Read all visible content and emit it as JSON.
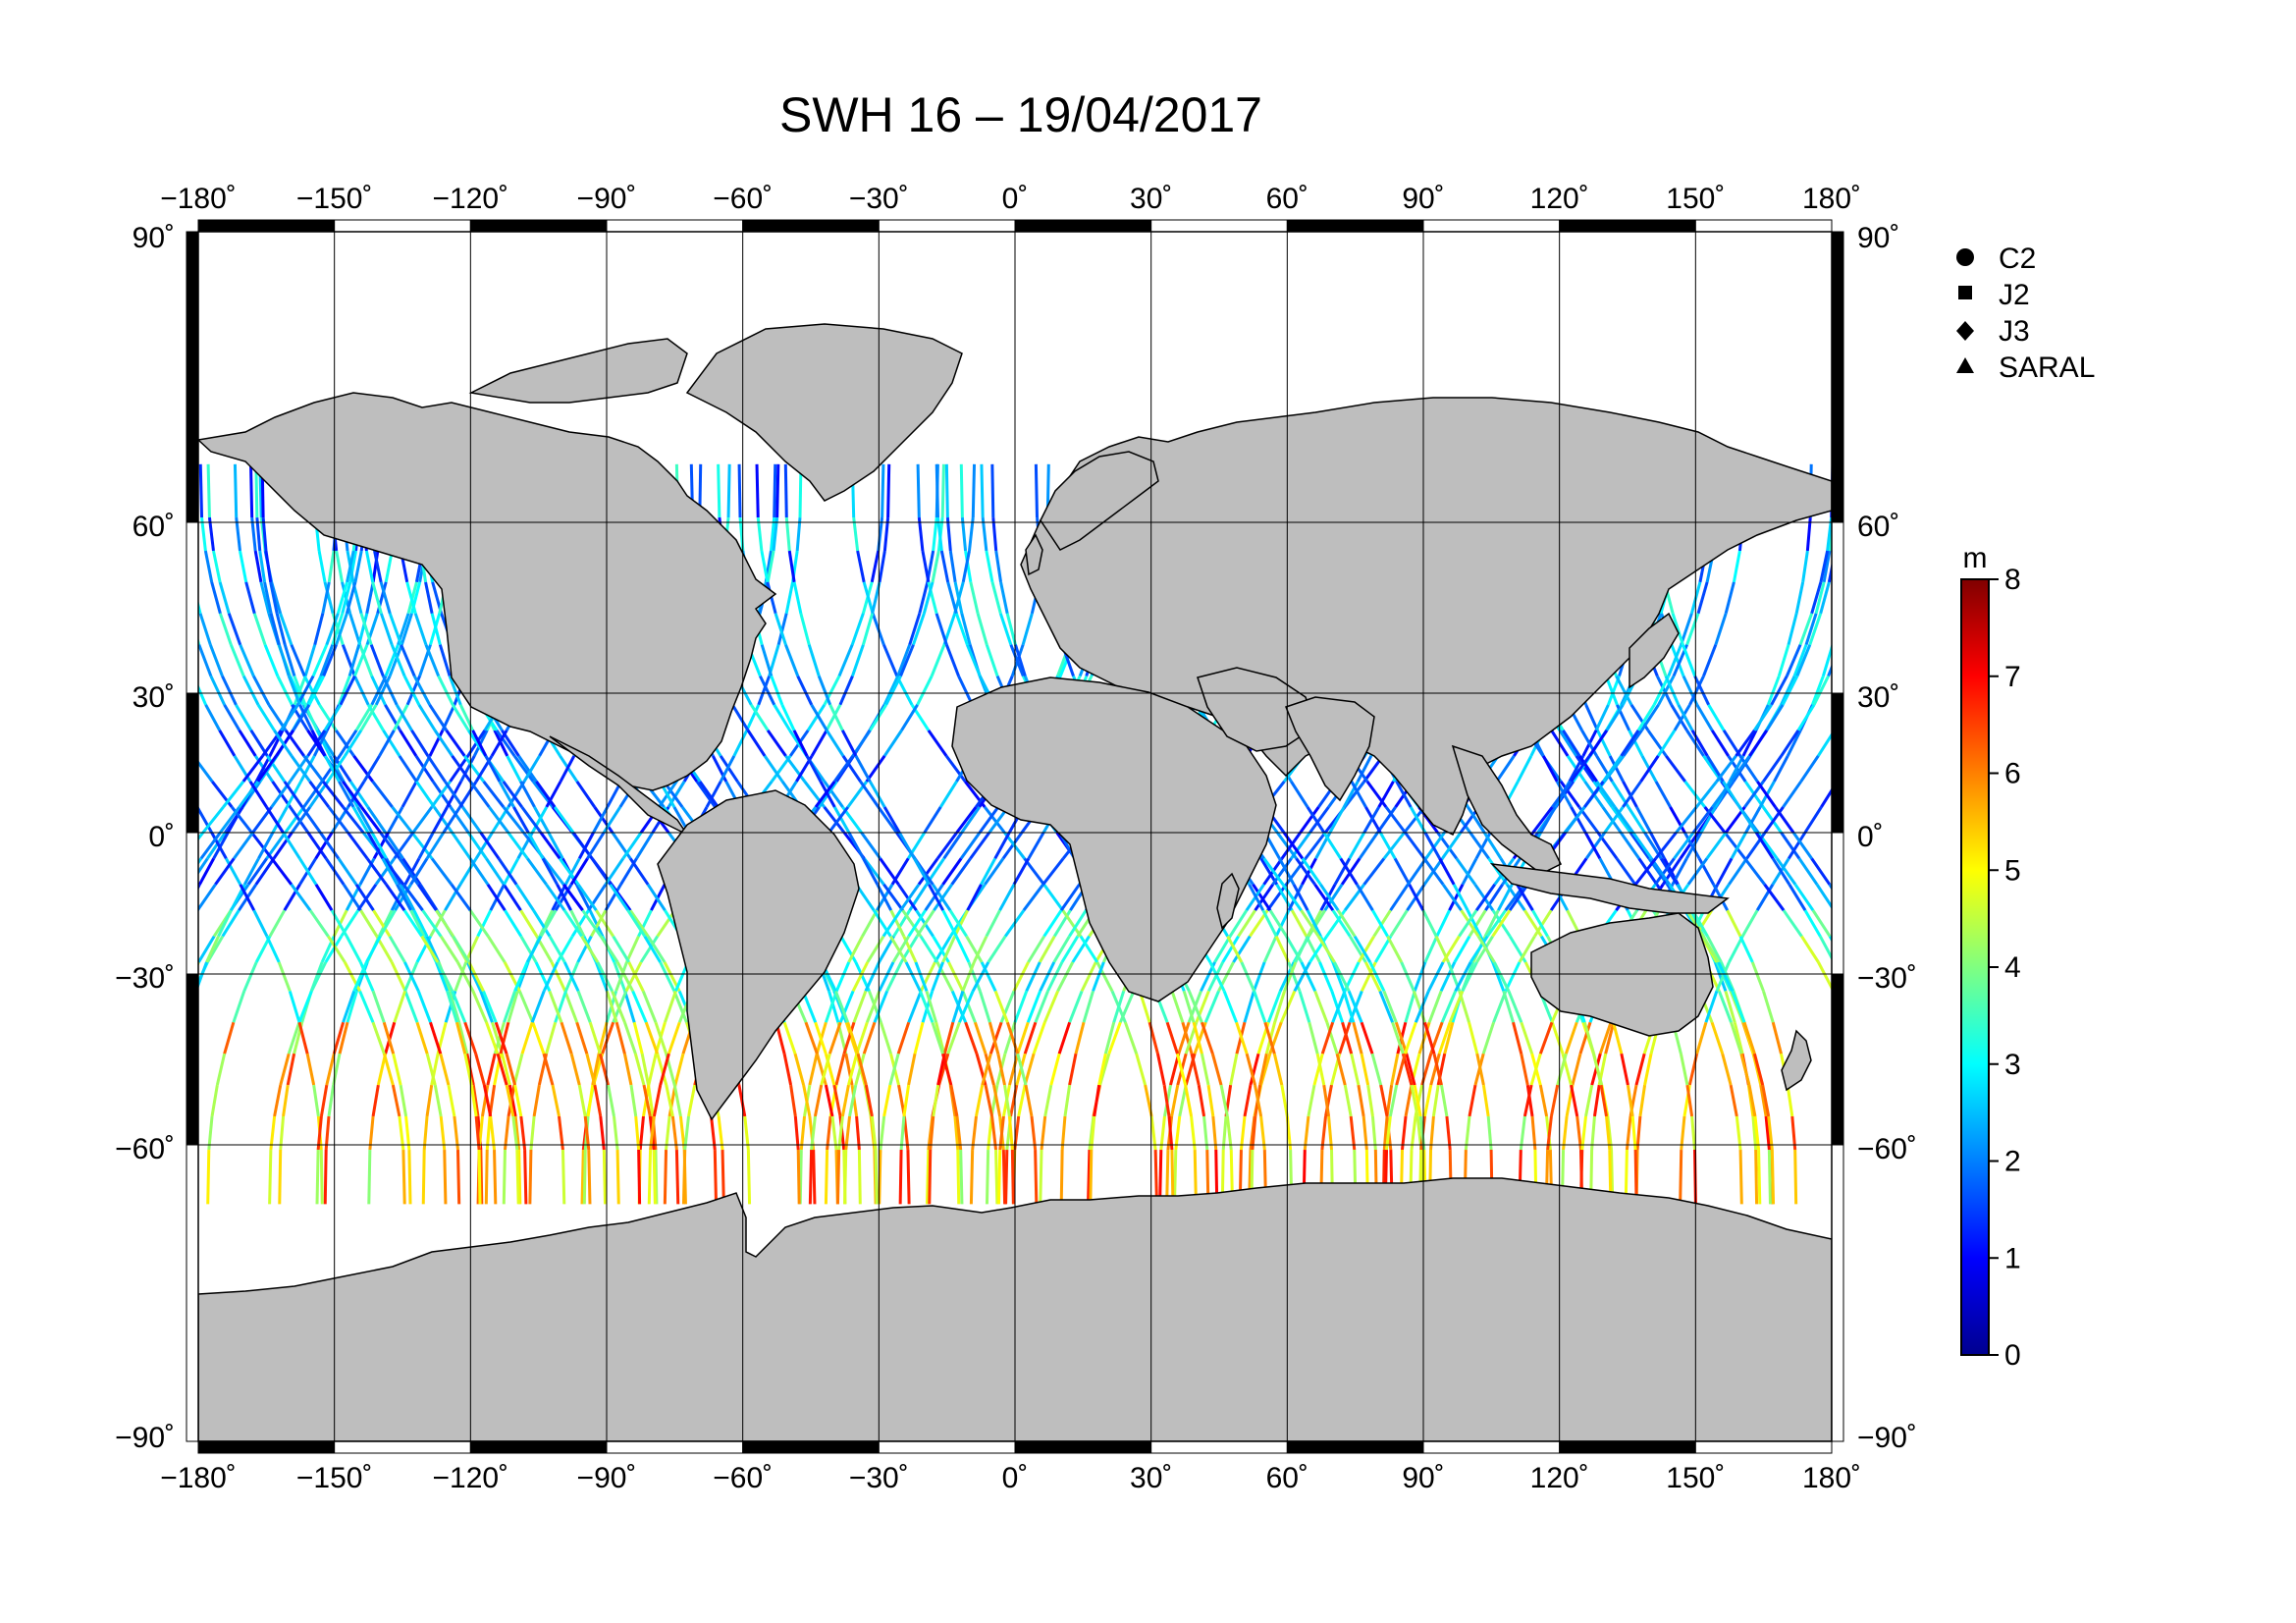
{
  "title": "SWH 16 – 19/04/2017",
  "lon_ticks": [
    "−180˚",
    "−150˚",
    "−120˚",
    "−90˚",
    "−60˚",
    "−30˚",
    "0˚",
    "30˚",
    "60˚",
    "90˚",
    "120˚",
    "150˚",
    "180˚"
  ],
  "lat_ticks_left": [
    "90˚",
    "60˚",
    "30˚",
    "0˚",
    "−30˚",
    "−60˚",
    "−90˚"
  ],
  "lat_ticks_right": [
    "90˚",
    "60˚",
    "30˚",
    "0˚",
    "−30˚",
    "−60˚",
    "−90˚"
  ],
  "legend": {
    "items": [
      {
        "label": "C2",
        "marker": "circle"
      },
      {
        "label": "J2",
        "marker": "square"
      },
      {
        "label": "J3",
        "marker": "diamond"
      },
      {
        "label": "SARAL",
        "marker": "triangle"
      }
    ]
  },
  "colorbar": {
    "unit": "m",
    "min": 0,
    "max": 8,
    "ticks": [
      "0",
      "1",
      "2",
      "3",
      "4",
      "5",
      "6",
      "7",
      "8"
    ],
    "colormap": "jet",
    "colors": [
      "#00008f",
      "#0000ff",
      "#0080ff",
      "#00ffff",
      "#80ff80",
      "#ffff00",
      "#ff8000",
      "#ff0000",
      "#800000"
    ]
  },
  "map": {
    "land_color": "#bebebe",
    "ocean_color": "#ffffff",
    "lon_range": [
      -180,
      180
    ],
    "lat_range": [
      -90,
      90
    ],
    "grid_lon": [
      -150,
      -120,
      -90,
      -60,
      -30,
      0,
      30,
      60,
      90,
      120,
      150
    ],
    "grid_lat": [
      -60,
      -30,
      0,
      30,
      60
    ]
  }
}
